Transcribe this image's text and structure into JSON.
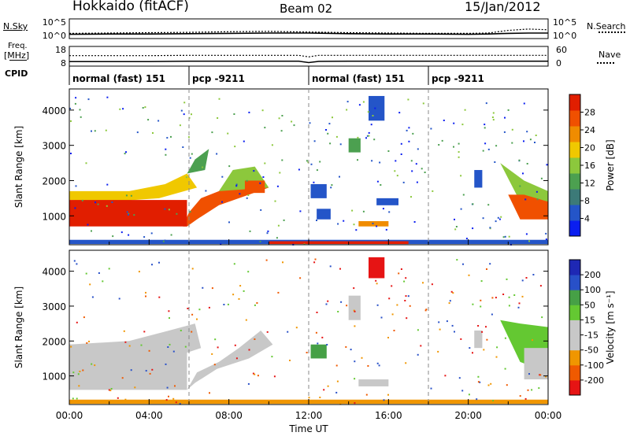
{
  "header": {
    "title": "Hokkaido (fitACF)",
    "beam": "Beam 02",
    "date": "15/Jan/2012"
  },
  "top_panels": {
    "nsky_label": "N.Sky",
    "nsky_ticks": [
      "10^5",
      "10^0"
    ],
    "nsearch_label": "N.Search",
    "nsearch_ticks": [
      "10^5",
      "10^0"
    ],
    "freq_label": "Freq.",
    "freq_unit": "[MHz]",
    "freq_ticks": [
      "18",
      "8"
    ],
    "nave_label": "Nave",
    "nave_ticks": [
      "60",
      "0"
    ],
    "cpid_label": "CPID",
    "cpid_segments": [
      {
        "label": "normal (fast) 151",
        "start": 0,
        "end": 6
      },
      {
        "label": "pcp -9211",
        "start": 6,
        "end": 12
      },
      {
        "label": "normal (fast) 151",
        "start": 12,
        "end": 18
      },
      {
        "label": "pcp -9211",
        "start": 18,
        "end": 24
      }
    ]
  },
  "colors": {
    "power_scale": [
      "#0a1ef0",
      "#2455c8",
      "#3c7a78",
      "#4ca050",
      "#8cc83c",
      "#f0c800",
      "#f08c00",
      "#f05000",
      "#e11e00"
    ],
    "velocity_scale": [
      "#e61414",
      "#f05a00",
      "#f09600",
      "#c8c8c8",
      "#c8c8c8",
      "#64c832",
      "#46a046",
      "#2850c8",
      "#1e28b4"
    ],
    "gray_band": "#c8c8c8"
  },
  "chart_data": [
    {
      "type": "line",
      "title": "N.Sky / N.Search",
      "x": [
        0,
        2,
        4,
        6,
        8,
        10,
        12,
        14,
        16,
        18,
        20,
        21,
        22,
        23,
        24
      ],
      "series": [
        {
          "name": "N.Sky",
          "values": [
            0.8,
            0.9,
            0.9,
            1.0,
            1.1,
            1.2,
            1.2,
            1.0,
            0.9,
            0.9,
            0.8,
            0.9,
            1.1,
            1.2,
            1.2
          ]
        },
        {
          "name": "N.Search",
          "values": [
            1.1,
            1.2,
            1.3,
            1.4,
            1.6,
            1.7,
            1.5,
            1.3,
            1.2,
            1.1,
            1.1,
            1.2,
            2.0,
            2.4,
            2.2
          ]
        }
      ],
      "xlim": [
        0,
        24
      ],
      "ylim": [
        0,
        5
      ]
    },
    {
      "type": "line",
      "title": "Freq. / Nave",
      "x": [
        0,
        2,
        4,
        6,
        8,
        10,
        11.5,
        12,
        12.5,
        14,
        16,
        18,
        20,
        22,
        24
      ],
      "series": [
        {
          "name": "Freq.",
          "values": [
            10.3,
            10.3,
            10.3,
            10.5,
            10.5,
            10.5,
            10.5,
            9.8,
            10.4,
            10.5,
            10.5,
            10.5,
            10.5,
            10.5,
            10.5
          ]
        },
        {
          "name": "Nave",
          "values": [
            32,
            32,
            32,
            33,
            33,
            33,
            33,
            28,
            33,
            33,
            33,
            33,
            33,
            33,
            33
          ]
        }
      ],
      "xlim": [
        0,
        24
      ]
    },
    {
      "type": "heatmap",
      "xlabel": "",
      "ylabel": "Slant Range [km]",
      "yticks": [
        "1000",
        "2000",
        "3000",
        "4000"
      ],
      "colorbar_label": "Power [dB]",
      "colorbar_ticks": [
        "28",
        "24",
        "20",
        "16",
        "12",
        "8",
        "4"
      ],
      "xlim": [
        0,
        24
      ],
      "ylim": [
        180,
        4600
      ]
    },
    {
      "type": "heatmap",
      "xlabel": "Time UT",
      "xticks": [
        "00:00",
        "04:00",
        "08:00",
        "12:00",
        "16:00",
        "20:00",
        "00:00"
      ],
      "ylabel": "Slant Range [km]",
      "yticks": [
        "1000",
        "2000",
        "3000",
        "4000"
      ],
      "colorbar_label": "Velocity [m s⁻¹]",
      "colorbar_ticks": [
        "200",
        "100",
        "50",
        "15",
        "-15",
        "-50",
        "-100",
        "-200"
      ],
      "xlim": [
        0,
        24
      ],
      "ylim": [
        180,
        4600
      ]
    }
  ]
}
